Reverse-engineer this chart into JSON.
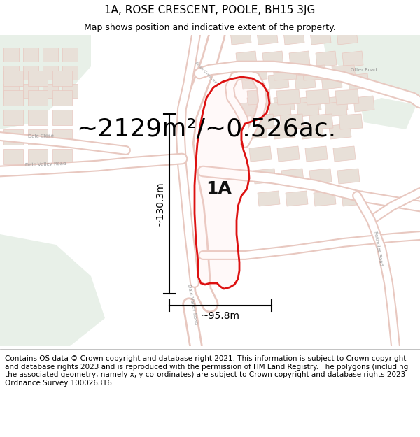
{
  "title": "1A, ROSE CRESCENT, POOLE, BH15 3JG",
  "subtitle": "Map shows position and indicative extent of the property.",
  "area_text": "~2129m²/~0.526ac.",
  "label_1a": "1A",
  "dim_horizontal": "~95.8m",
  "dim_vertical": "~130.3m",
  "footer": "Contains OS data © Crown copyright and database right 2021. This information is subject to Crown copyright and database rights 2023 and is reproduced with the permission of HM Land Registry. The polygons (including the associated geometry, namely x, y co-ordinates) are subject to Crown copyright and database rights 2023 Ordnance Survey 100026316.",
  "bg_map_color": "#f5f0ec",
  "bg_green_color": "#e8f0e8",
  "road_color": "#ffffff",
  "road_outline_color": "#e8c8c0",
  "plot_outline_color": "#dd1111",
  "building_fill_color": "#e8e0d8",
  "building_outline_color": "#d0c0b8",
  "footer_bg": "#ffffff",
  "title_fontsize": 11,
  "subtitle_fontsize": 9,
  "area_fontsize": 26,
  "label_fontsize": 18,
  "dim_fontsize": 10,
  "footer_fontsize": 7.5
}
